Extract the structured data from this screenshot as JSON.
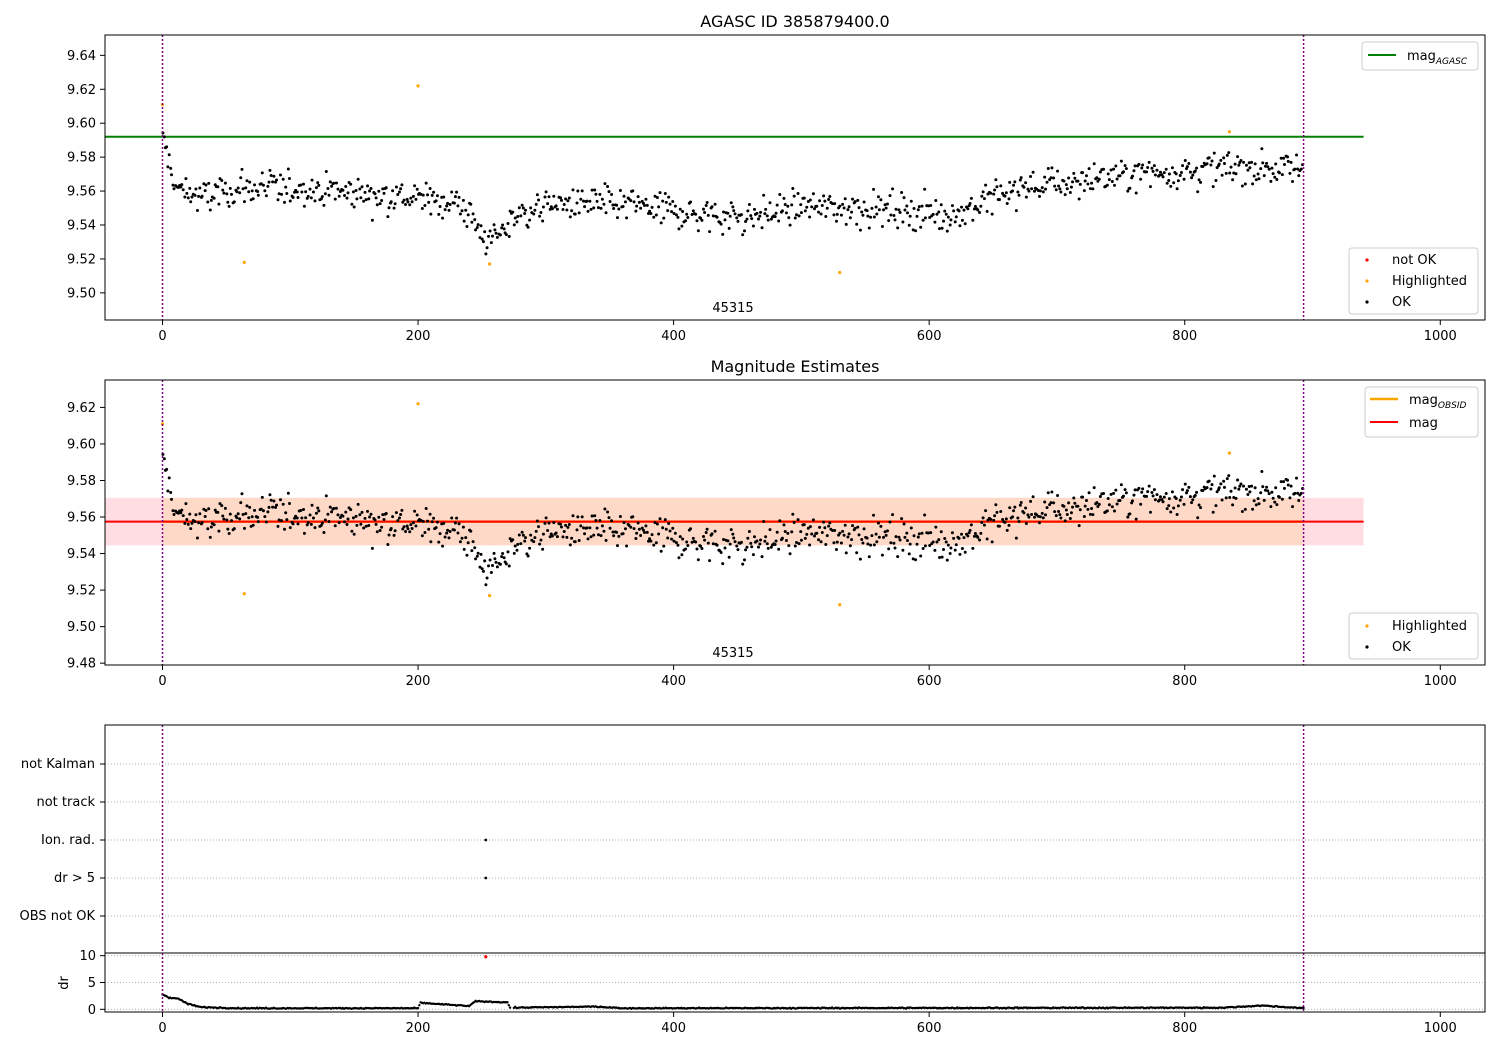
{
  "chart_data": [
    {
      "type": "scatter",
      "title": "AGASC ID 385879400.0",
      "annotation": "45315",
      "xlim": [
        -45,
        1035
      ],
      "ylim": [
        9.484,
        9.652
      ],
      "xticks": [
        0,
        200,
        400,
        600,
        800,
        1000
      ],
      "yticks": [
        9.5,
        9.52,
        9.54,
        9.56,
        9.58,
        9.6,
        9.62,
        9.64
      ],
      "legend_upper": {
        "main": "mag",
        "sub": "AGASC",
        "color": "#008000"
      },
      "legend_lower": [
        "not OK",
        "Highlighted",
        "OK"
      ],
      "legend_lower_colors": [
        "#ff0000",
        "#ffa500",
        "#000000"
      ],
      "mag_agasc": 9.592,
      "mag_agasc_xrange": [
        0,
        940
      ],
      "obs_boundaries": [
        0,
        893
      ],
      "highlighted": [
        [
          0,
          9.611
        ],
        [
          64,
          9.518
        ],
        [
          200,
          9.622
        ],
        [
          256,
          9.517
        ],
        [
          530,
          9.512
        ],
        [
          835,
          9.595
        ]
      ],
      "ok_trend": [
        [
          0,
          9.592
        ],
        [
          10,
          9.562
        ],
        [
          30,
          9.556
        ],
        [
          60,
          9.561
        ],
        [
          100,
          9.562
        ],
        [
          140,
          9.56
        ],
        [
          180,
          9.557
        ],
        [
          210,
          9.555
        ],
        [
          235,
          9.552
        ],
        [
          245,
          9.54
        ],
        [
          255,
          9.53
        ],
        [
          265,
          9.535
        ],
        [
          275,
          9.545
        ],
        [
          300,
          9.552
        ],
        [
          340,
          9.553
        ],
        [
          380,
          9.551
        ],
        [
          420,
          9.546
        ],
        [
          460,
          9.545
        ],
        [
          500,
          9.551
        ],
        [
          540,
          9.55
        ],
        [
          580,
          9.549
        ],
        [
          620,
          9.546
        ],
        [
          650,
          9.556
        ],
        [
          680,
          9.563
        ],
        [
          720,
          9.566
        ],
        [
          760,
          9.57
        ],
        [
          800,
          9.572
        ],
        [
          840,
          9.574
        ],
        [
          893,
          9.573
        ]
      ],
      "ok_count": 893,
      "ok_scatter": 0.0085
    },
    {
      "type": "scatter",
      "title": "Magnitude Estimates",
      "annotation": "45315",
      "xlim": [
        -45,
        1035
      ],
      "ylim": [
        9.479,
        9.635
      ],
      "xticks": [
        0,
        200,
        400,
        600,
        800,
        1000
      ],
      "yticks": [
        9.48,
        9.5,
        9.52,
        9.54,
        9.56,
        9.58,
        9.6,
        9.62
      ],
      "legend_upper": [
        {
          "main": "mag",
          "sub": "OBSID",
          "color": "#ffa500"
        },
        {
          "main": "mag",
          "sub": "",
          "color": "#ff0000"
        }
      ],
      "legend_lower": [
        "Highlighted",
        "OK"
      ],
      "legend_lower_colors": [
        "#ffa500",
        "#000000"
      ],
      "mag": 9.5575,
      "mag_band": [
        9.5445,
        9.5705
      ],
      "mag_xrange": [
        0,
        940
      ],
      "obsid_mag": 9.5575,
      "obsid_band": [
        9.5445,
        9.5705
      ],
      "obsid_xrange": [
        0,
        893
      ],
      "obs_boundaries": [
        0,
        893
      ]
    },
    {
      "type": "scatter",
      "xlim": [
        -45,
        1035
      ],
      "categories": [
        "not Kalman",
        "not track",
        "Ion. rad.",
        "dr > 5",
        "OBS not OK"
      ],
      "flag_points": [
        [
          "Ion. rad.",
          253
        ],
        [
          "dr > 5",
          253
        ]
      ],
      "obs_boundaries": [
        0,
        893
      ]
    },
    {
      "type": "scatter",
      "ylabel": "dr",
      "xlim": [
        -45,
        1035
      ],
      "ylim": [
        -0.5,
        10.5
      ],
      "xticks": [
        0,
        200,
        400,
        600,
        800,
        1000
      ],
      "yticks": [
        0,
        5,
        10
      ],
      "red_point": [
        253,
        9.8
      ],
      "dr_trend": [
        [
          0,
          2.8
        ],
        [
          5,
          2.2
        ],
        [
          12,
          2.0
        ],
        [
          20,
          1.0
        ],
        [
          30,
          0.4
        ],
        [
          60,
          0.2
        ],
        [
          200,
          0.2
        ],
        [
          202,
          1.2
        ],
        [
          240,
          0.6
        ],
        [
          245,
          1.5
        ],
        [
          270,
          1.3
        ],
        [
          272,
          0.3
        ],
        [
          340,
          0.5
        ],
        [
          360,
          0.2
        ],
        [
          830,
          0.3
        ],
        [
          860,
          0.7
        ],
        [
          893,
          0.2
        ]
      ],
      "obs_boundaries": [
        0,
        893
      ]
    }
  ],
  "colors": {
    "ok": "#000000",
    "highlighted": "#ffa500",
    "not_ok": "#ff0000",
    "boundary": "#800080",
    "band_obsid": "#ffd9c8",
    "band_mag": "#ffdde2"
  }
}
